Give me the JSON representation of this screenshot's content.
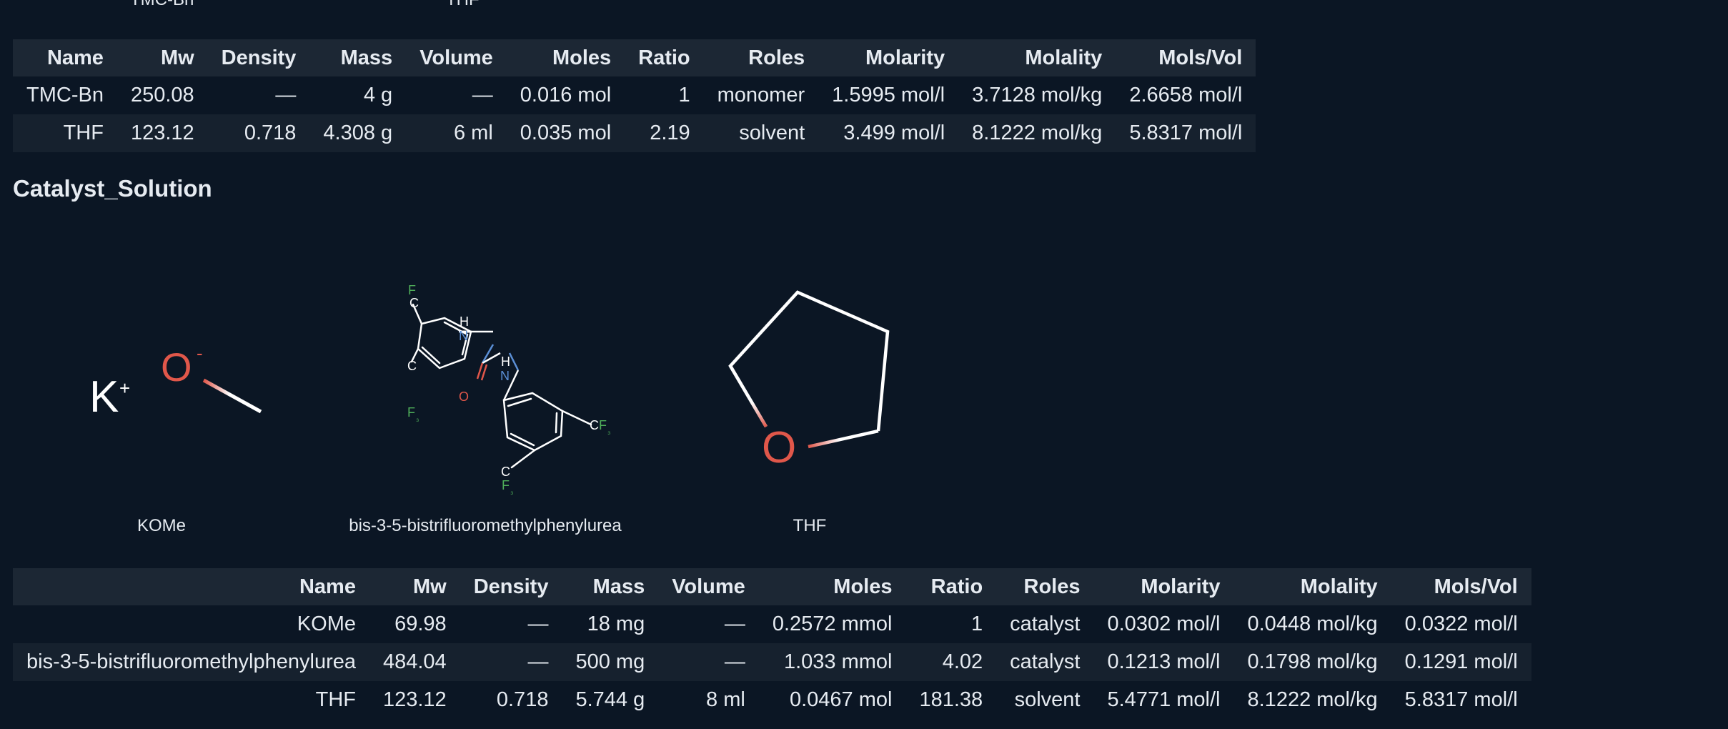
{
  "top_captions": [
    "TMC-Bn",
    "THF"
  ],
  "table1": {
    "headers": [
      "Name",
      "Mw",
      "Density",
      "Mass",
      "Volume",
      "Moles",
      "Ratio",
      "Roles",
      "Molarity",
      "Molality",
      "Mols/Vol"
    ],
    "rows": [
      [
        "TMC-Bn",
        "250.08",
        "—",
        "4 g",
        "—",
        "0.016 mol",
        "1",
        "monomer",
        "1.5995 mol/l",
        "3.7128 mol/kg",
        "2.6658 mol/l"
      ],
      [
        "THF",
        "123.12",
        "0.718",
        "4.308 g",
        "6 ml",
        "0.035 mol",
        "2.19",
        "solvent",
        "3.499 mol/l",
        "8.1222 mol/kg",
        "5.8317 mol/l"
      ]
    ]
  },
  "section_title": "Catalyst_Solution",
  "molecules": [
    {
      "caption": "KOMe",
      "atoms": {
        "k": "K",
        "k_charge": "+",
        "o": "O",
        "o_charge": "-"
      }
    },
    {
      "caption": "bis-3-5-bistrifluoromethylphenylurea",
      "atoms": {
        "f": "F",
        "c": "C",
        "f3": "F",
        "sub3": "₃",
        "n": "N",
        "h": "H",
        "o": "O"
      }
    },
    {
      "caption": "THF",
      "atoms": {
        "o": "O"
      }
    }
  ],
  "colors": {
    "background": "#0b1624",
    "header_bg": "#1c2734",
    "stripe_bg": "#16212e",
    "oxygen": "#e0574a",
    "nitrogen": "#5b8fd6",
    "fluorine": "#4fae5a",
    "bond": "#ffffff"
  },
  "table2": {
    "headers": [
      "Name",
      "Mw",
      "Density",
      "Mass",
      "Volume",
      "Moles",
      "Ratio",
      "Roles",
      "Molarity",
      "Molality",
      "Mols/Vol"
    ],
    "rows": [
      [
        "KOMe",
        "69.98",
        "—",
        "18 mg",
        "—",
        "0.2572 mmol",
        "1",
        "catalyst",
        "0.0302 mol/l",
        "0.0448 mol/kg",
        "0.0322 mol/l"
      ],
      [
        "bis-3-5-bistrifluoromethylphenylurea",
        "484.04",
        "—",
        "500 mg",
        "—",
        "1.033 mmol",
        "4.02",
        "catalyst",
        "0.1213 mol/l",
        "0.1798 mol/kg",
        "0.1291 mol/l"
      ],
      [
        "THF",
        "123.12",
        "0.718",
        "5.744 g",
        "8 ml",
        "0.0467 mol",
        "181.38",
        "solvent",
        "5.4771 mol/l",
        "8.1222 mol/kg",
        "5.8317 mol/l"
      ]
    ]
  }
}
